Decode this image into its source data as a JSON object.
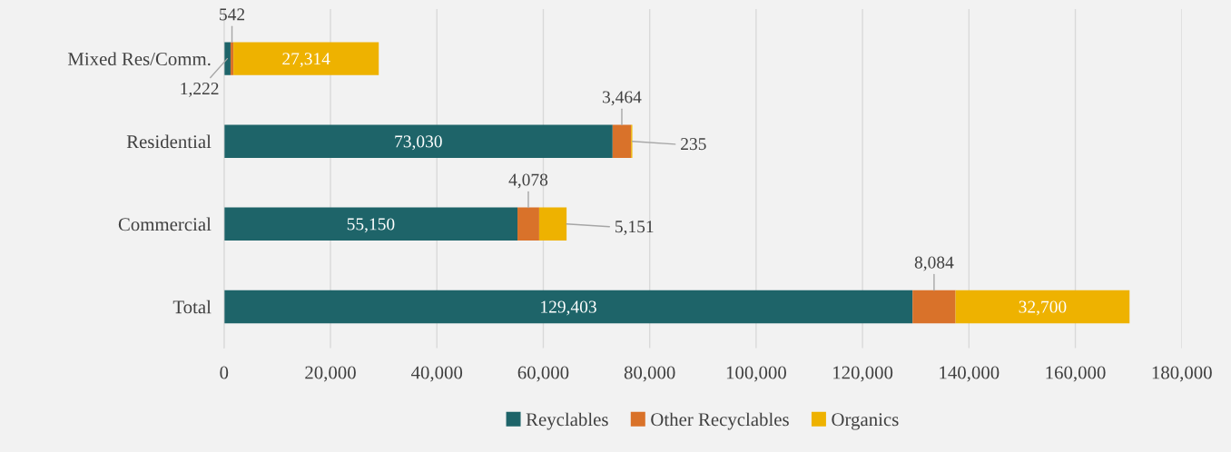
{
  "chart_data": {
    "type": "bar",
    "orientation": "horizontal",
    "stacked": true,
    "categories": [
      "Mixed Res/Comm.",
      "Residential",
      "Commercial",
      "Total"
    ],
    "series": [
      {
        "name": "Reyclables",
        "color": "#1e6469",
        "values": [
          1222,
          73030,
          55150,
          129403
        ],
        "value_labels": [
          "1,222",
          "73,030",
          "55,150",
          "129,403"
        ]
      },
      {
        "name": "Other Recyclables",
        "color": "#d9722a",
        "values": [
          542,
          3464,
          4078,
          8084
        ],
        "value_labels": [
          "542",
          "3,464",
          "4,078",
          "8,084"
        ]
      },
      {
        "name": "Organics",
        "color": "#eeb200",
        "values": [
          27314,
          235,
          5151,
          32700
        ],
        "value_labels": [
          "27,314",
          "235",
          "5,151",
          "32,700"
        ]
      }
    ],
    "xlim": [
      0,
      180000
    ],
    "xticks": [
      0,
      {
        "value": 20000,
        "label": "20,000"
      },
      {
        "value": 40000,
        "label": "40,000"
      },
      {
        "value": 60000,
        "label": "60,000"
      },
      {
        "value": 80000,
        "label": "80,000"
      },
      {
        "value": 100000,
        "label": "100,000"
      },
      {
        "value": 120000,
        "label": "120,000"
      },
      {
        "value": 140000,
        "label": "140,000"
      },
      {
        "value": 160000,
        "label": "160,000"
      },
      {
        "value": 180000,
        "label": "180,000"
      }
    ],
    "grid": "x",
    "legend": "bottom"
  }
}
